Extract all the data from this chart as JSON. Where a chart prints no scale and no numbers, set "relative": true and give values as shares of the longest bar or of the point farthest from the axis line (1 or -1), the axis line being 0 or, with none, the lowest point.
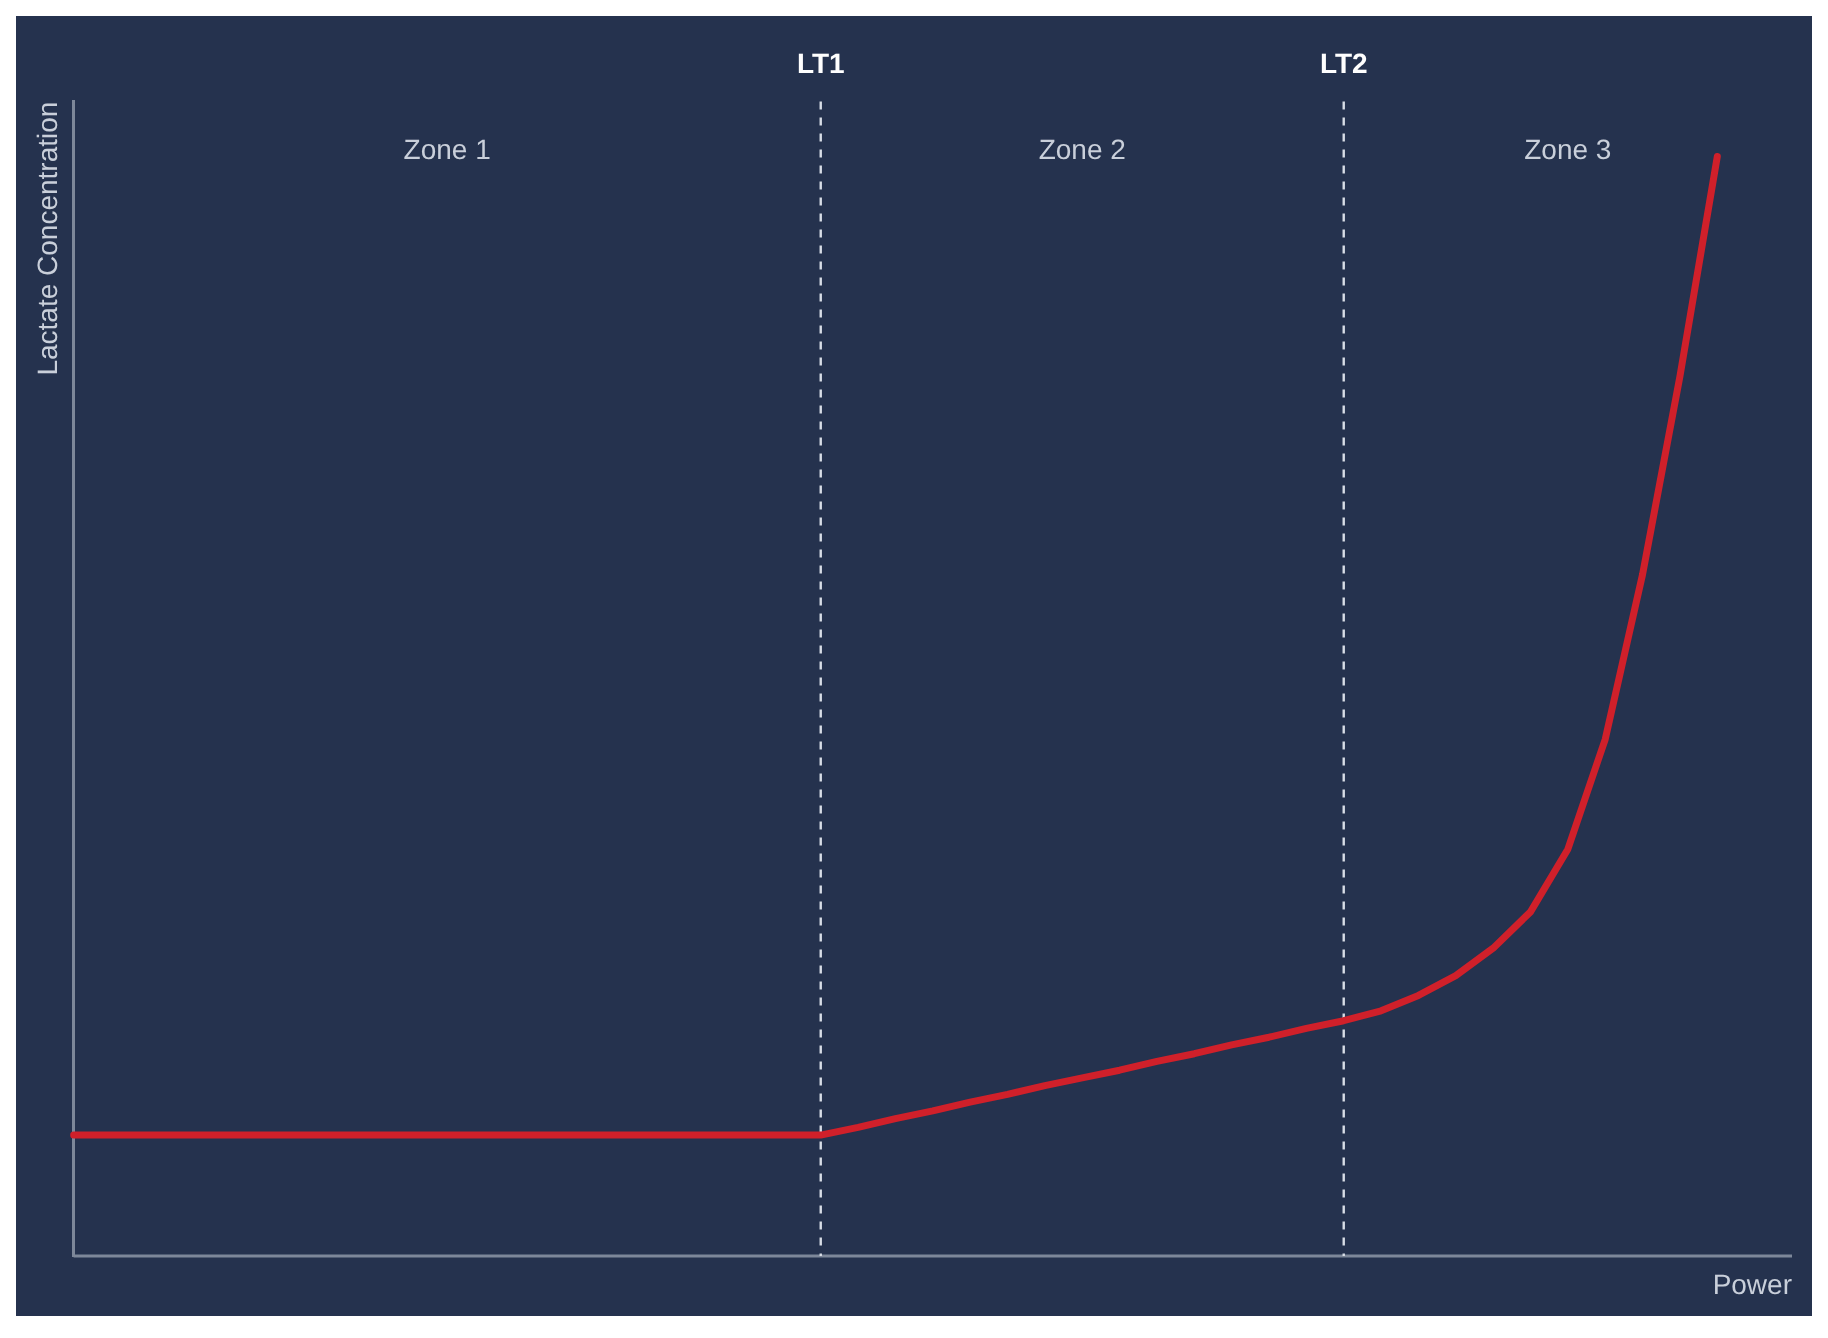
{
  "chart_data": {
    "type": "line",
    "relative": true,
    "xlabel": "Power",
    "ylabel": "Lactate Concentration",
    "grid": false,
    "legend": false,
    "marker": "none",
    "line_style": "solid",
    "categories": [
      null,
      null,
      null,
      null,
      null,
      null,
      null,
      null,
      null,
      null,
      null,
      null,
      null,
      null,
      null,
      null,
      null,
      null,
      null,
      null,
      "LT1",
      null,
      null,
      null,
      null,
      null,
      null,
      null,
      null,
      null,
      null,
      null,
      null,
      null,
      "LT2",
      null,
      null,
      null,
      null,
      null,
      null,
      null,
      null,
      null,
      null,
      null,
      null
    ],
    "series": [
      {
        "color": "#d0202a",
        "values": [
          0.11,
          0.11,
          0.11,
          0.11,
          0.11,
          0.11,
          0.11,
          0.11,
          0.11,
          0.11,
          0.11,
          0.11,
          0.11,
          0.11,
          0.11,
          0.11,
          0.11,
          0.11,
          0.11,
          0.11,
          0.11,
          0.117,
          0.125,
          0.132,
          0.14,
          0.147,
          0.155,
          0.162,
          0.169,
          0.177,
          0.184,
          0.192,
          0.199,
          0.207,
          0.214,
          0.223,
          0.237,
          0.255,
          0.28,
          0.313,
          0.37,
          0.47,
          0.62,
          0.8,
          1,
          null,
          null
        ]
      }
    ],
    "ref_lines": [
      {
        "axis": "x",
        "value": "LT1",
        "color": "#d8dde6",
        "line_style": "dashed"
      },
      {
        "axis": "x",
        "value": "LT2",
        "color": "#d8dde6",
        "line_style": "dashed"
      }
    ],
    "annotations": [
      "Zone 1",
      "Zone 2",
      "Zone 3"
    ]
  }
}
